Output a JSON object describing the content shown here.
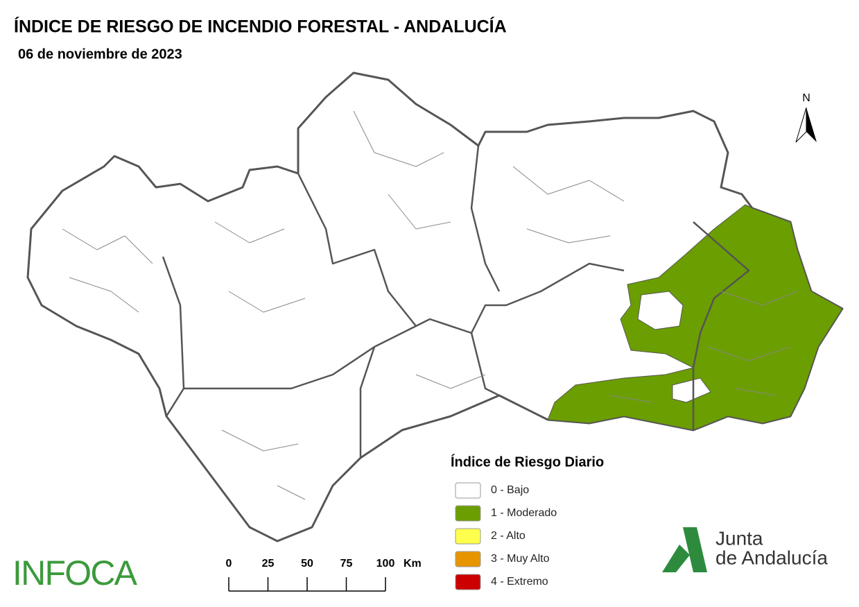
{
  "header": {
    "title": "ÍNDICE DE RIESGO DE INCENDIO FORESTAL - ANDALUCÍA",
    "subtitle": "06 de noviembre de 2023"
  },
  "north": "N",
  "legend": {
    "title": "Índice de Riesgo Diario",
    "items": [
      {
        "label": "0 - Bajo",
        "color": "#ffffff"
      },
      {
        "label": "1 - Moderado",
        "color": "#6b9e00"
      },
      {
        "label": "2 - Alto",
        "color": "#ffff4d"
      },
      {
        "label": "3 - Muy Alto",
        "color": "#e69500"
      },
      {
        "label": "4 - Extremo",
        "color": "#cc0000"
      }
    ]
  },
  "scale": {
    "ticks": [
      0,
      25,
      50,
      75,
      100
    ],
    "unit": "Km"
  },
  "logos": {
    "left": "INFOCA",
    "right_line1": "Junta",
    "right_line2": "de Andalucía"
  }
}
